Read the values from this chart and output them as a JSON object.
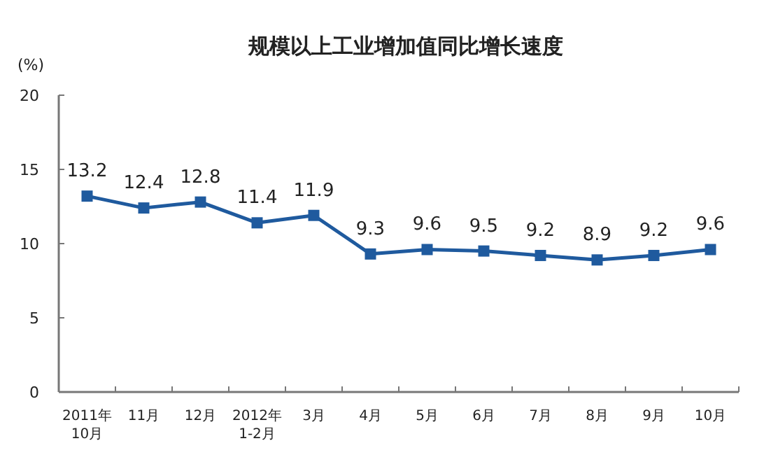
{
  "chart_data": {
    "type": "line",
    "title": "规模以上工业增加值同比增长速度",
    "ylabel": "(%)",
    "categories": [
      "2011年\n10月",
      "11月",
      "12月",
      "2012年\n1-2月",
      "3月",
      "4月",
      "5月",
      "6月",
      "7月",
      "8月",
      "9月",
      "10月"
    ],
    "series": [
      {
        "color": "#1f5a9e",
        "values": [
          13.2,
          12.4,
          12.8,
          11.4,
          11.9,
          9.3,
          9.6,
          9.5,
          9.2,
          8.9,
          9.2,
          9.6
        ]
      }
    ],
    "ylim": [
      0,
      20
    ],
    "yticks": [
      0,
      5,
      10,
      15,
      20
    ],
    "marker": "square",
    "data_labels": true
  }
}
